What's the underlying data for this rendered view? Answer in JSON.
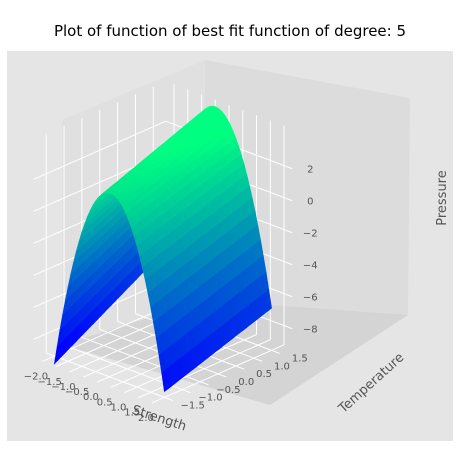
{
  "chart_data": {
    "type": "surface",
    "title": "Plot of function of best fit function of degree: 5",
    "xlabel": "Strength",
    "ylabel": "Temperature",
    "zlabel": "Pressure",
    "x_ticks": [
      "−2.0",
      "−1.5",
      "−1.0",
      "−0.5",
      "0.0",
      "0.5",
      "1.0",
      "1.5",
      "2.0"
    ],
    "y_ticks": [
      "−1.5",
      "−1.0",
      "−0.5",
      "0.0",
      "0.5",
      "1.0",
      "1.5"
    ],
    "z_ticks": [
      "−8",
      "−6",
      "−4",
      "−2",
      "0",
      "2"
    ],
    "xlim": [
      -2.0,
      2.0
    ],
    "ylim": [
      -1.5,
      1.5
    ],
    "zlim": [
      -8.5,
      3.5
    ],
    "grid": true,
    "colormap": "winter",
    "colormap_low": "#0000ff",
    "colormap_high": "#00ff80",
    "surface_samples": {
      "description_of_shape_is_not_printed": "",
      "x": [
        -2.0,
        0.0,
        2.0
      ],
      "y": [
        -1.5,
        0.0,
        1.5
      ],
      "z_at_corners": {
        "x-2_y-1.5": -7.2,
        "x2_y-1.5": -8.6,
        "x-2_y1.5": -2.6,
        "x2_y1.5": -2.4
      },
      "z_peak": 3.1
    }
  },
  "colors": {
    "panel_background": "#e5e5e5",
    "grid": "#ffffff",
    "text": "#555555"
  }
}
